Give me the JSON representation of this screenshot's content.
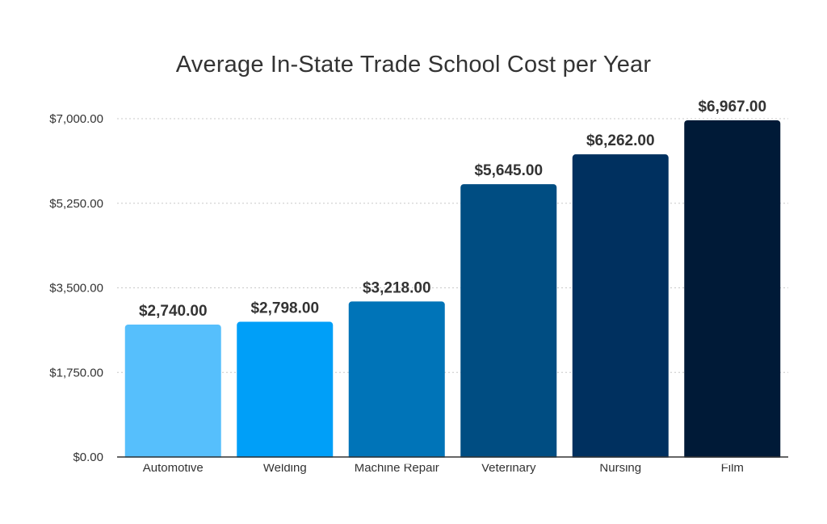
{
  "chart_data": {
    "type": "bar",
    "title": "Average In-State Trade School Cost per Year",
    "xlabel": "",
    "ylabel": "",
    "categories": [
      "Automotive",
      "Welding",
      "Machine Repair",
      "Veterinary",
      "Nursing",
      "Film"
    ],
    "values": [
      2740,
      2798,
      3218,
      5645,
      6262,
      6967
    ],
    "data_labels": [
      "$2,740.00",
      "$2,798.00",
      "$3,218.00",
      "$5,645.00",
      "$6,262.00",
      "$6,967.00"
    ],
    "ylim": [
      0,
      7000
    ],
    "yticks": [
      0,
      1750,
      3500,
      5250,
      7000
    ],
    "ytick_labels": [
      "$0.00",
      "$1,750.00",
      "$3,500.00",
      "$5,250.00",
      "$7,000.00"
    ],
    "bar_colors": [
      "#56bffc",
      "#009ff8",
      "#0074b8",
      "#004d82",
      "#00305f",
      "#001a37"
    ],
    "grid": true,
    "legend": "none"
  }
}
